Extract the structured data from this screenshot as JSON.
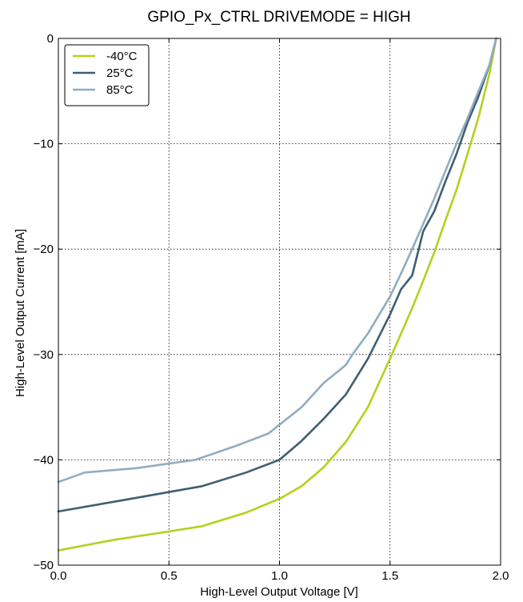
{
  "chart_data": {
    "type": "line",
    "title": "GPIO_Px_CTRL DRIVEMODE = HIGH",
    "xlabel": "High-Level Output Voltage [V]",
    "ylabel": "High-Level Output Current [mA]",
    "xlim": [
      0.0,
      2.0
    ],
    "ylim": [
      -50,
      0
    ],
    "xticks": [
      {
        "value": 0.0,
        "label": "0.0"
      },
      {
        "value": 0.5,
        "label": "0.5"
      },
      {
        "value": 1.0,
        "label": "1.0"
      },
      {
        "value": 1.5,
        "label": "1.5"
      },
      {
        "value": 2.0,
        "label": "2.0"
      }
    ],
    "yticks": [
      {
        "value": 0,
        "label": "0"
      },
      {
        "value": -10,
        "label": "−10"
      },
      {
        "value": -20,
        "label": "−20"
      },
      {
        "value": -30,
        "label": "−30"
      },
      {
        "value": -40,
        "label": "−40"
      },
      {
        "value": -50,
        "label": "−50"
      }
    ],
    "grid": true,
    "legend_position": "top-left",
    "series": [
      {
        "name": "-40°C",
        "color": "#b5d01e",
        "x": [
          0.0,
          0.25,
          0.5,
          0.65,
          0.85,
          1.0,
          1.1,
          1.2,
          1.3,
          1.4,
          1.5,
          1.55,
          1.6,
          1.65,
          1.7,
          1.75,
          1.8,
          1.85,
          1.9,
          1.95,
          1.98
        ],
        "y": [
          -48.6,
          -47.6,
          -46.8,
          -46.3,
          -45.0,
          -43.7,
          -42.5,
          -40.7,
          -38.3,
          -35.0,
          -30.4,
          -28.0,
          -25.6,
          -23.0,
          -20.3,
          -17.3,
          -14.4,
          -11.0,
          -7.5,
          -3.3,
          0.0
        ]
      },
      {
        "name": "25°C",
        "color": "#3f5f72",
        "x": [
          0.0,
          0.3,
          0.65,
          0.85,
          1.0,
          1.1,
          1.2,
          1.3,
          1.4,
          1.5,
          1.55,
          1.6,
          1.65,
          1.7,
          1.75,
          1.8,
          1.85,
          1.9,
          1.95,
          1.98
        ],
        "y": [
          -44.9,
          -43.8,
          -42.5,
          -41.2,
          -40.0,
          -38.2,
          -36.1,
          -33.8,
          -30.4,
          -26.2,
          -23.8,
          -22.5,
          -18.3,
          -16.4,
          -13.6,
          -11.0,
          -8.0,
          -5.5,
          -2.5,
          0.0
        ]
      },
      {
        "name": "85°C",
        "color": "#8fadc0",
        "x": [
          0.0,
          0.12,
          0.35,
          0.62,
          0.8,
          0.95,
          1.1,
          1.2,
          1.3,
          1.33,
          1.4,
          1.5,
          1.55,
          1.6,
          1.65,
          1.7,
          1.75,
          1.8,
          1.85,
          1.9,
          1.95,
          1.98
        ],
        "y": [
          -42.1,
          -41.2,
          -40.8,
          -40.0,
          -38.7,
          -37.5,
          -35.0,
          -32.7,
          -31.0,
          -30.0,
          -28.0,
          -24.5,
          -22.3,
          -20.0,
          -17.6,
          -15.2,
          -12.6,
          -10.0,
          -7.6,
          -5.0,
          -2.5,
          0.0
        ]
      }
    ]
  }
}
